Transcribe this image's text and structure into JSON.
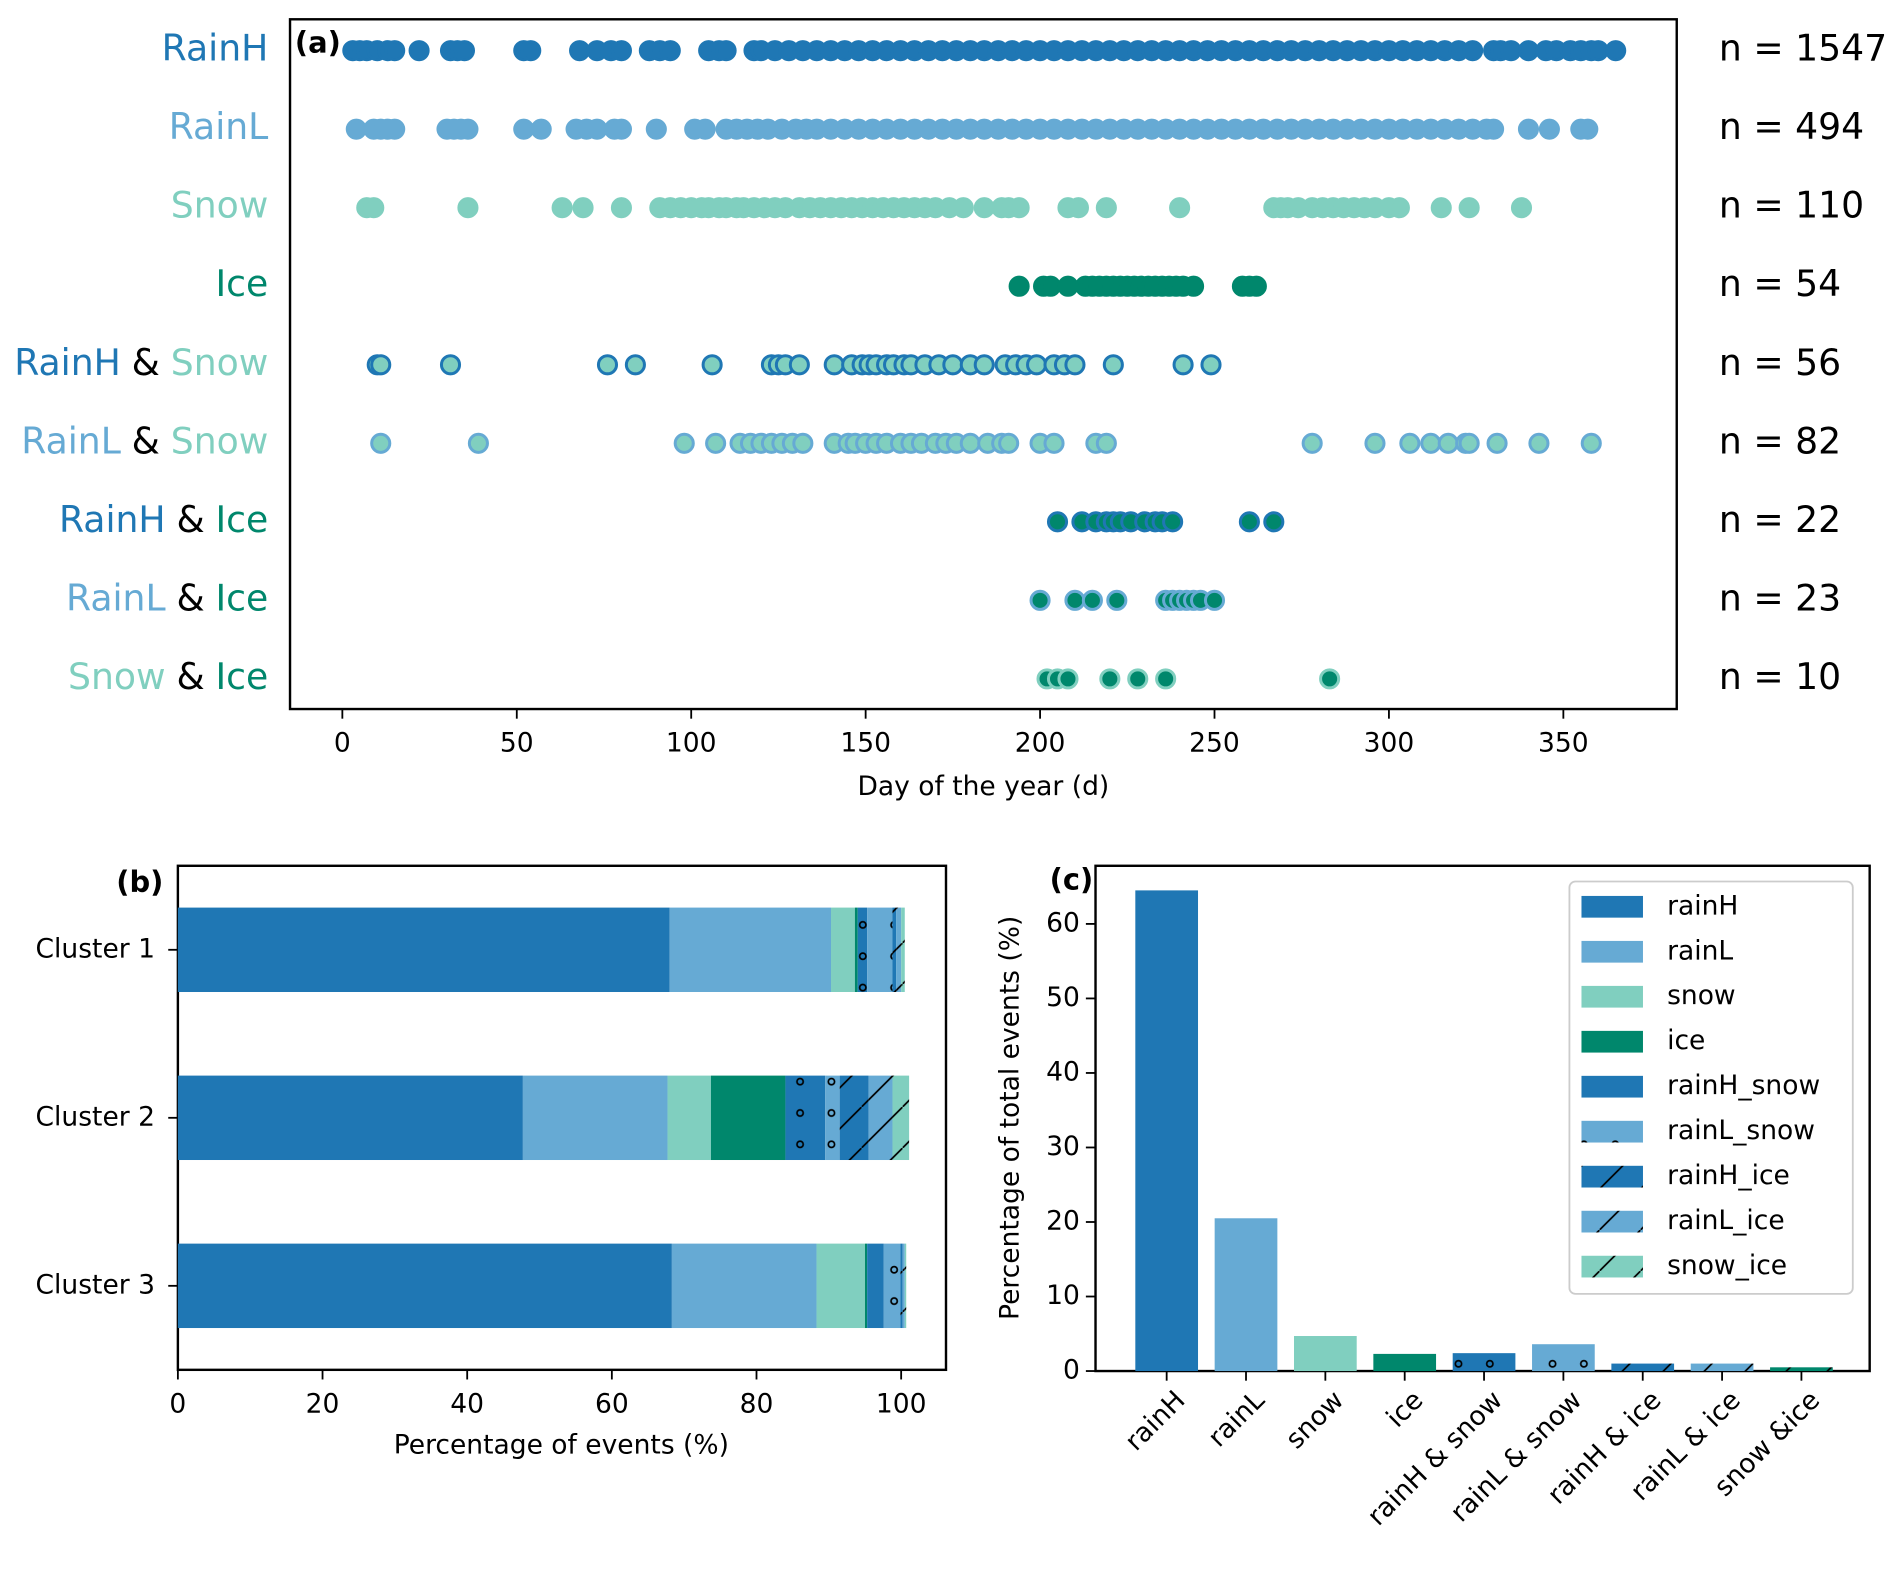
{
  "chart_data": [
    {
      "type": "strip",
      "title": "(a)",
      "xlabel": "Day of the year (d)",
      "xlim": [
        -15,
        382.5
      ],
      "xticks": [
        0,
        50,
        100,
        150,
        200,
        250,
        300,
        350
      ],
      "rows": [
        {
          "label": [
            {
              "text": "RainH",
              "color": "#1f77b4"
            }
          ],
          "n_label": "n = 1547",
          "fill": "#1f77b4",
          "edge": "#1f77b4",
          "x": [
            3,
            5,
            7,
            10,
            13,
            15,
            22,
            31,
            33,
            35,
            52,
            54,
            68,
            73,
            77,
            80,
            88,
            91,
            94,
            105,
            108,
            110,
            118,
            120,
            124,
            128,
            132,
            136,
            140,
            144,
            148,
            152,
            156,
            160,
            164,
            168,
            172,
            176,
            180,
            184,
            188,
            192,
            196,
            200,
            204,
            208,
            212,
            216,
            220,
            224,
            228,
            232,
            236,
            240,
            244,
            248,
            252,
            256,
            260,
            264,
            268,
            272,
            276,
            280,
            284,
            288,
            292,
            296,
            300,
            304,
            308,
            312,
            316,
            320,
            324,
            330,
            332,
            335,
            340,
            345,
            348,
            352,
            355,
            358,
            360,
            365
          ]
        },
        {
          "label": [
            {
              "text": "RainL",
              "color": "#66aad4"
            }
          ],
          "n_label": "n = 494",
          "fill": "#66aad4",
          "edge": "#66aad4",
          "x": [
            4,
            9,
            11,
            13,
            15,
            30,
            32,
            34,
            36,
            52,
            57,
            67,
            70,
            73,
            78,
            80,
            90,
            101,
            104,
            110,
            113,
            116,
            119,
            122,
            126,
            130,
            133,
            136,
            140,
            144,
            148,
            152,
            156,
            160,
            164,
            168,
            172,
            176,
            180,
            184,
            188,
            192,
            196,
            200,
            204,
            208,
            212,
            216,
            220,
            224,
            228,
            232,
            236,
            240,
            244,
            248,
            252,
            256,
            260,
            264,
            268,
            272,
            276,
            280,
            284,
            288,
            292,
            296,
            300,
            304,
            308,
            312,
            316,
            320,
            324,
            328,
            330,
            340,
            346,
            355,
            357
          ]
        },
        {
          "label": [
            {
              "text": "Snow",
              "color": "#80cfbf"
            }
          ],
          "n_label": "n = 110",
          "fill": "#80cfbf",
          "edge": "#80cfbf",
          "x": [
            7,
            9,
            36,
            63,
            69,
            80,
            91,
            94,
            97,
            100,
            103,
            105,
            108,
            110,
            113,
            115,
            118,
            121,
            124,
            127,
            131,
            134,
            137,
            140,
            143,
            146,
            149,
            152,
            155,
            158,
            161,
            164,
            167,
            170,
            174,
            178,
            184,
            189,
            191,
            194,
            208,
            211,
            219,
            240,
            267,
            269,
            271,
            274,
            278,
            281,
            284,
            287,
            290,
            293,
            296,
            300,
            303,
            315,
            323,
            338
          ]
        },
        {
          "label": [
            {
              "text": "Ice",
              "color": "#00876c"
            }
          ],
          "n_label": "n = 54",
          "fill": "#00876c",
          "edge": "#00876c",
          "x": [
            194,
            201,
            203,
            208,
            213,
            215,
            217,
            219,
            221,
            223,
            225,
            227,
            229,
            231,
            233,
            235,
            237,
            239,
            241,
            244,
            258,
            260,
            262
          ]
        },
        {
          "label": [
            {
              "text": "RainH",
              "color": "#1f77b4"
            },
            {
              "text": "&",
              "color": "#000000"
            },
            {
              "text": "Snow",
              "color": "#80cfbf"
            }
          ],
          "n_label": "n = 56",
          "fill": "#80cfbf",
          "edge": "#1f77b4",
          "x": [
            10,
            11,
            31,
            76,
            84,
            106,
            123,
            125,
            127,
            131,
            141,
            146,
            149,
            151,
            153,
            156,
            158,
            161,
            163,
            167,
            171,
            175,
            180,
            184,
            190,
            193,
            196,
            199,
            204,
            207,
            210,
            221,
            241,
            249
          ]
        },
        {
          "label": [
            {
              "text": "RainL",
              "color": "#66aad4"
            },
            {
              "text": "&",
              "color": "#000000"
            },
            {
              "text": "Snow",
              "color": "#80cfbf"
            }
          ],
          "n_label": "n = 82",
          "fill": "#80cfbf",
          "edge": "#66aad4",
          "x": [
            11,
            39,
            98,
            107,
            114,
            117,
            120,
            123,
            126,
            129,
            132,
            141,
            145,
            147,
            150,
            153,
            156,
            160,
            163,
            166,
            170,
            173,
            176,
            180,
            185,
            189,
            191,
            200,
            204,
            216,
            219,
            278,
            296,
            306,
            312,
            317,
            322,
            323,
            331,
            343,
            358
          ]
        },
        {
          "label": [
            {
              "text": "RainH",
              "color": "#1f77b4"
            },
            {
              "text": "&",
              "color": "#000000"
            },
            {
              "text": "Ice",
              "color": "#00876c"
            }
          ],
          "n_label": "n = 22",
          "fill": "#00876c",
          "edge": "#1f77b4",
          "x": [
            205,
            212,
            216,
            219,
            221,
            223,
            226,
            230,
            233,
            235,
            238,
            260,
            267
          ]
        },
        {
          "label": [
            {
              "text": "RainL",
              "color": "#66aad4"
            },
            {
              "text": "&",
              "color": "#000000"
            },
            {
              "text": "Ice",
              "color": "#00876c"
            }
          ],
          "n_label": "n = 23",
          "fill": "#00876c",
          "edge": "#66aad4",
          "x": [
            200,
            210,
            215,
            222,
            236,
            238,
            240,
            242,
            244,
            246,
            250
          ]
        },
        {
          "label": [
            {
              "text": "Snow",
              "color": "#80cfbf"
            },
            {
              "text": "&",
              "color": "#000000"
            },
            {
              "text": "Ice",
              "color": "#00876c"
            }
          ],
          "n_label": "n = 10",
          "fill": "#00876c",
          "edge": "#80cfbf",
          "x": [
            202,
            205,
            208,
            220,
            228,
            236,
            283
          ]
        }
      ]
    },
    {
      "type": "stacked_barh",
      "title": "(b)",
      "xlabel": "Percentage of events (%)",
      "categories": [
        "Cluster 1",
        "Cluster 2",
        "Cluster 3"
      ],
      "xlim": [
        0,
        106.2
      ],
      "xticks": [
        0,
        20,
        40,
        60,
        80,
        100
      ],
      "series": [
        {
          "color": "#1f77b4",
          "hatch": "none",
          "values": [
            68.0,
            47.7,
            68.3
          ]
        },
        {
          "color": "#66aad4",
          "hatch": "none",
          "values": [
            22.3,
            20.0,
            20.0
          ]
        },
        {
          "color": "#80cfbf",
          "hatch": "none",
          "values": [
            3.3,
            6.0,
            6.7
          ]
        },
        {
          "color": "#00876c",
          "hatch": "none",
          "values": [
            0.4,
            10.3,
            0.3
          ]
        },
        {
          "color": "#1f77b4",
          "hatch": "o",
          "values": [
            1.3,
            5.5,
            2.3
          ]
        },
        {
          "color": "#66aad4",
          "hatch": "o",
          "values": [
            3.5,
            2.0,
            2.3
          ]
        },
        {
          "color": "#1f77b4",
          "hatch": "/",
          "values": [
            0.5,
            4.0,
            0.3
          ]
        },
        {
          "color": "#66aad4",
          "hatch": "/",
          "values": [
            0.7,
            3.3,
            0.3
          ]
        },
        {
          "color": "#80cfbf",
          "hatch": "/",
          "values": [
            0.5,
            2.3,
            0.2
          ]
        }
      ]
    },
    {
      "type": "bar",
      "title": "(c)",
      "ylabel": "Percentage of total events (%)",
      "categories": [
        "rainH",
        "rainL",
        "snow",
        "ice",
        "rainH & snow",
        "rainL & snow",
        "rainH & ice",
        "rainL & ice",
        "snow &ice"
      ],
      "values": [
        64.5,
        20.5,
        4.7,
        2.3,
        2.4,
        3.6,
        1.0,
        1.0,
        0.5
      ],
      "colors": [
        "#1f77b4",
        "#66aad4",
        "#80cfbf",
        "#00876c",
        "#1f77b4",
        "#66aad4",
        "#1f77b4",
        "#66aad4",
        "#00876c"
      ],
      "hatches": [
        "none",
        "none",
        "none",
        "none",
        "o",
        "o",
        "/",
        "/",
        "/"
      ],
      "legend": {
        "names": [
          "rainH",
          "rainL",
          "snow",
          "ice",
          "rainH_snow",
          "rainL_snow",
          "rainH_ice",
          "rainL_ice",
          "snow_ice"
        ],
        "colors": [
          "#1f77b4",
          "#66aad4",
          "#80cfbf",
          "#00876c",
          "#1f77b4",
          "#66aad4",
          "#1f77b4",
          "#66aad4",
          "#80cfbf"
        ],
        "hatches": [
          "none",
          "none",
          "none",
          "none",
          "none",
          "o",
          "/",
          "/",
          "/"
        ]
      },
      "ylim": [
        0,
        67.8
      ],
      "yticks": [
        0,
        10,
        20,
        30,
        40,
        50,
        60
      ]
    }
  ]
}
